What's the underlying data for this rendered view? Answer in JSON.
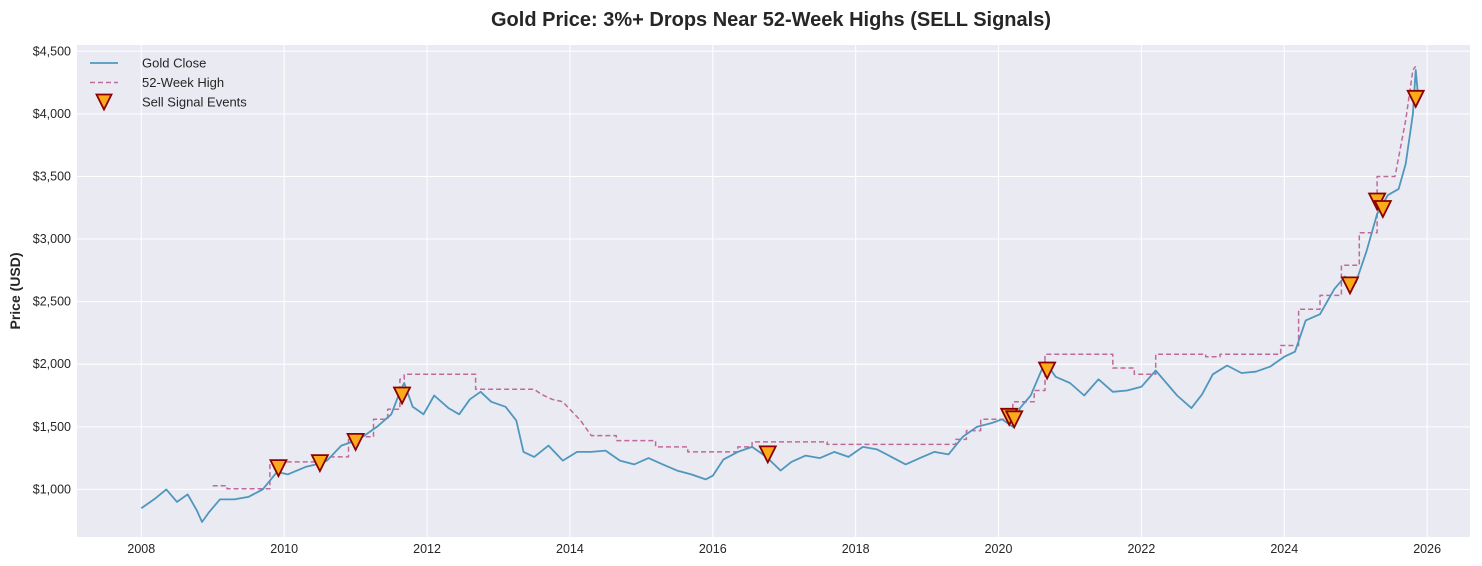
{
  "chart_data": {
    "type": "line",
    "title": "Gold Price: 3%+ Drops Near 52-Week Highs (SELL Signals)",
    "xlabel": "",
    "ylabel": "Price (USD)",
    "xlim": [
      2007.1,
      2026.6
    ],
    "ylim": [
      620,
      4550
    ],
    "grid": true,
    "legend_position": "top-left",
    "x_ticks": [
      2008,
      2010,
      2012,
      2014,
      2016,
      2018,
      2020,
      2022,
      2024,
      2026
    ],
    "x_tick_labels": [
      "2008",
      "2010",
      "2012",
      "2014",
      "2016",
      "2018",
      "2020",
      "2022",
      "2024",
      "2026"
    ],
    "y_ticks": [
      1000,
      1500,
      2000,
      2500,
      3000,
      3500,
      4000,
      4500
    ],
    "y_tick_labels": [
      "$1,000",
      "$1,500",
      "$2,000",
      "$2,500",
      "$3,000",
      "$3,500",
      "$4,000",
      "$4,500"
    ],
    "colors": {
      "gold_close": "#4f97bd",
      "high_52w": "#bf6a9a",
      "marker_fill": "#fbaa1a",
      "marker_edge": "#8b0000",
      "plot_bg": "#eaeaf2",
      "grid": "#ffffff"
    },
    "series": [
      {
        "name": "Gold Close",
        "style": "solid",
        "x": [
          2008.0,
          2008.2,
          2008.35,
          2008.5,
          2008.65,
          2008.78,
          2008.85,
          2008.95,
          2009.1,
          2009.3,
          2009.5,
          2009.7,
          2009.9,
          2010.05,
          2010.3,
          2010.45,
          2010.6,
          2010.8,
          2010.95,
          2011.1,
          2011.3,
          2011.5,
          2011.62,
          2011.68,
          2011.8,
          2011.95,
          2012.1,
          2012.3,
          2012.45,
          2012.6,
          2012.75,
          2012.9,
          2013.1,
          2013.25,
          2013.35,
          2013.5,
          2013.7,
          2013.9,
          2014.1,
          2014.3,
          2014.5,
          2014.7,
          2014.9,
          2015.1,
          2015.3,
          2015.5,
          2015.7,
          2015.9,
          2016.0,
          2016.15,
          2016.35,
          2016.55,
          2016.75,
          2016.95,
          2017.1,
          2017.3,
          2017.5,
          2017.7,
          2017.9,
          2018.1,
          2018.3,
          2018.5,
          2018.7,
          2018.9,
          2019.1,
          2019.3,
          2019.5,
          2019.7,
          2019.9,
          2020.05,
          2020.2,
          2020.3,
          2020.45,
          2020.6,
          2020.65,
          2020.8,
          2021.0,
          2021.2,
          2021.4,
          2021.6,
          2021.8,
          2022.0,
          2022.2,
          2022.35,
          2022.5,
          2022.7,
          2022.85,
          2023.0,
          2023.2,
          2023.4,
          2023.6,
          2023.8,
          2024.0,
          2024.15,
          2024.3,
          2024.5,
          2024.7,
          2024.85,
          2025.0,
          2025.15,
          2025.3,
          2025.45,
          2025.6,
          2025.7,
          2025.8,
          2025.84,
          2025.88
        ],
        "values": [
          850,
          930,
          1000,
          900,
          960,
          830,
          740,
          820,
          920,
          920,
          940,
          1000,
          1140,
          1120,
          1180,
          1200,
          1230,
          1350,
          1380,
          1420,
          1500,
          1600,
          1780,
          1850,
          1660,
          1600,
          1750,
          1650,
          1600,
          1720,
          1780,
          1700,
          1660,
          1550,
          1300,
          1260,
          1350,
          1230,
          1300,
          1300,
          1310,
          1230,
          1200,
          1250,
          1200,
          1150,
          1120,
          1080,
          1110,
          1240,
          1300,
          1340,
          1260,
          1150,
          1220,
          1270,
          1250,
          1300,
          1260,
          1340,
          1320,
          1260,
          1200,
          1250,
          1300,
          1280,
          1420,
          1500,
          1530,
          1560,
          1500,
          1650,
          1750,
          1950,
          2020,
          1900,
          1850,
          1750,
          1880,
          1780,
          1790,
          1820,
          1950,
          1850,
          1750,
          1650,
          1760,
          1920,
          1990,
          1930,
          1940,
          1980,
          2060,
          2100,
          2350,
          2400,
          2600,
          2700,
          2650,
          2900,
          3200,
          3350,
          3400,
          3600,
          4000,
          4350,
          4100
        ]
      },
      {
        "name": "52-Week High",
        "style": "dashed",
        "x": [
          2009.0,
          2009.2,
          2009.2,
          2009.8,
          2009.8,
          2010.45,
          2010.45,
          2010.9,
          2010.9,
          2011.25,
          2011.25,
          2011.45,
          2011.45,
          2011.62,
          2011.62,
          2011.68,
          2011.68,
          2012.68,
          2012.68,
          2013.5,
          2013.6,
          2013.75,
          2013.9,
          2014.15,
          2014.3,
          2014.35,
          2014.65,
          2014.65,
          2015.2,
          2015.2,
          2015.65,
          2015.65,
          2016.1,
          2016.1,
          2016.35,
          2016.35,
          2016.55,
          2016.55,
          2017.6,
          2017.6,
          2019.4,
          2019.4,
          2019.55,
          2019.55,
          2019.75,
          2019.75,
          2020.1,
          2020.1,
          2020.2,
          2020.2,
          2020.5,
          2020.5,
          2020.65,
          2020.65,
          2021.6,
          2021.6,
          2021.9,
          2021.9,
          2022.2,
          2022.2,
          2022.9,
          2022.9,
          2023.1,
          2023.1,
          2023.95,
          2023.95,
          2024.2,
          2024.2,
          2024.5,
          2024.5,
          2024.8,
          2024.8,
          2025.05,
          2025.05,
          2025.3,
          2025.3,
          2025.55,
          2025.55,
          2025.7,
          2025.8,
          2025.84
        ],
        "values": [
          1030,
          1030,
          1005,
          1005,
          1220,
          1220,
          1260,
          1260,
          1420,
          1420,
          1560,
          1560,
          1640,
          1640,
          1880,
          1880,
          1920,
          1920,
          1800,
          1800,
          1760,
          1720,
          1700,
          1550,
          1430,
          1430,
          1430,
          1390,
          1390,
          1340,
          1340,
          1300,
          1300,
          1300,
          1300,
          1340,
          1340,
          1380,
          1380,
          1360,
          1360,
          1400,
          1400,
          1470,
          1470,
          1560,
          1560,
          1580,
          1580,
          1700,
          1700,
          1790,
          1790,
          2080,
          2080,
          1970,
          1970,
          1920,
          1920,
          2080,
          2080,
          2060,
          2060,
          2080,
          2080,
          2150,
          2150,
          2440,
          2440,
          2550,
          2550,
          2790,
          2790,
          3050,
          3050,
          3500,
          3500,
          3500,
          3950,
          4350,
          4380
        ]
      }
    ],
    "sell_signals": {
      "name": "Sell Signal Events",
      "x": [
        2009.92,
        2010.5,
        2011.0,
        2011.65,
        2016.77,
        2020.15,
        2020.22,
        2020.68,
        2024.92,
        2025.3,
        2025.38,
        2025.84
      ],
      "values": [
        1170,
        1210,
        1380,
        1750,
        1280,
        1580,
        1560,
        1950,
        2630,
        3300,
        3240,
        4120
      ]
    },
    "legend": [
      {
        "label": "Gold Close",
        "style": "line"
      },
      {
        "label": "52-Week High",
        "style": "dashed"
      },
      {
        "label": "Sell Signal Events",
        "style": "marker"
      }
    ]
  }
}
